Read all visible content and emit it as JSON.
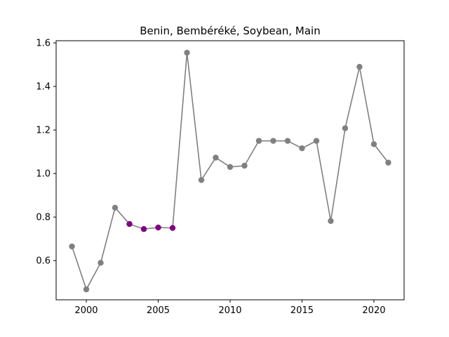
{
  "chart_data": {
    "type": "line",
    "title": "Benin, Bembéréké, Soybean, Main",
    "xlabel": "",
    "ylabel": "",
    "xlim": [
      1997.9,
      2022.1
    ],
    "ylim": [
      0.42,
      1.61
    ],
    "x_ticks": [
      2000,
      2005,
      2010,
      2015,
      2020
    ],
    "y_ticks": [
      0.6,
      0.8,
      1.0,
      1.2,
      1.4,
      1.6
    ],
    "y_tick_labels": [
      "0.6",
      "0.8",
      "1.0",
      "1.2",
      "1.4",
      "1.6"
    ],
    "grid": false,
    "legend": "none",
    "series": [
      {
        "color": "#808080",
        "x": [
          1999,
          2000,
          2001,
          2002,
          2003,
          2004,
          2005,
          2006,
          2007,
          2008,
          2009,
          2010,
          2011,
          2012,
          2013,
          2014,
          2015,
          2016,
          2017,
          2018,
          2019,
          2020,
          2021
        ],
        "values": [
          0.665,
          0.468,
          0.59,
          0.843,
          0.768,
          0.745,
          0.752,
          0.75,
          1.555,
          0.97,
          1.073,
          1.03,
          1.036,
          1.15,
          1.15,
          1.15,
          1.116,
          1.15,
          0.782,
          1.208,
          1.49,
          1.135,
          1.05
        ]
      }
    ],
    "highlighted_points": {
      "color": "#800080",
      "x": [
        2003,
        2004,
        2005,
        2006
      ]
    }
  }
}
